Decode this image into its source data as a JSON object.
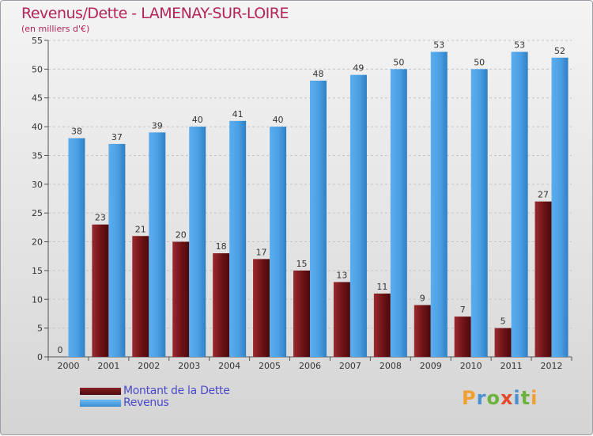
{
  "title": "Revenus/Dette - LAMENAY-SUR-LOIRE",
  "subtitle": "(en milliers d'€)",
  "chart_data": {
    "type": "bar",
    "title": "Revenus/Dette - LAMENAY-SUR-LOIRE",
    "subtitle": "(en milliers d'€)",
    "xlabel": "",
    "ylabel": "",
    "ylim": [
      0,
      55
    ],
    "yticks": [
      0,
      5,
      10,
      15,
      20,
      25,
      30,
      35,
      40,
      45,
      50,
      55
    ],
    "grid": true,
    "categories": [
      "2000",
      "2001",
      "2002",
      "2003",
      "2004",
      "2005",
      "2006",
      "2007",
      "2008",
      "2009",
      "2010",
      "2011",
      "2012"
    ],
    "series": [
      {
        "name": "Montant de la Dette",
        "color": "#7a1418",
        "values": [
          0,
          23,
          21,
          20,
          18,
          17,
          15,
          13,
          11,
          9,
          7,
          5,
          27
        ]
      },
      {
        "name": "Revenus",
        "color": "#4fa3e0",
        "values": [
          38,
          37,
          39,
          40,
          41,
          40,
          48,
          49,
          50,
          53,
          50,
          53,
          52
        ]
      }
    ],
    "legend_position": "bottom-left"
  },
  "logo": {
    "letters": [
      "P",
      "r",
      "o",
      "x",
      "i",
      "t",
      "i"
    ],
    "colors": [
      "#f0a030",
      "#4a90d0",
      "#6cb33e",
      "#e34b2c",
      "#4a90d0",
      "#6cb33e",
      "#f0a030"
    ]
  }
}
